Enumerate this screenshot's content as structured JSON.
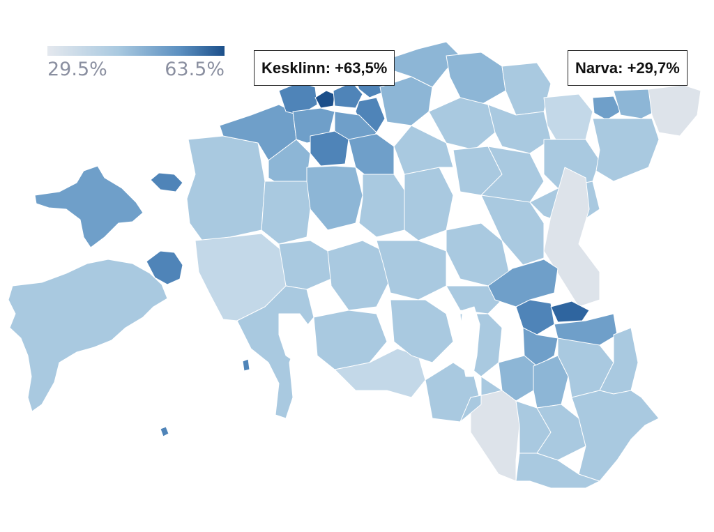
{
  "legend": {
    "min_label": "29.5%",
    "max_label": "63.5%",
    "min_color": "#e4e8ee",
    "max_color": "#1c4f8a"
  },
  "callouts": {
    "kesklinn": "Kesklinn: +63,5%",
    "narva": "Narva: +29,7%"
  },
  "map": {
    "subject": "Estonia municipalities choropleth",
    "scale": "sequential blue",
    "colors": {
      "very_light": "#dde3ea",
      "light": "#c3d8e8",
      "light_mid": "#a9c9e0",
      "mid": "#8db6d6",
      "mid_dark": "#6f9fc9",
      "dark": "#4f84b8",
      "darkest": "#1c4f8a",
      "border": "#ffffff"
    }
  }
}
